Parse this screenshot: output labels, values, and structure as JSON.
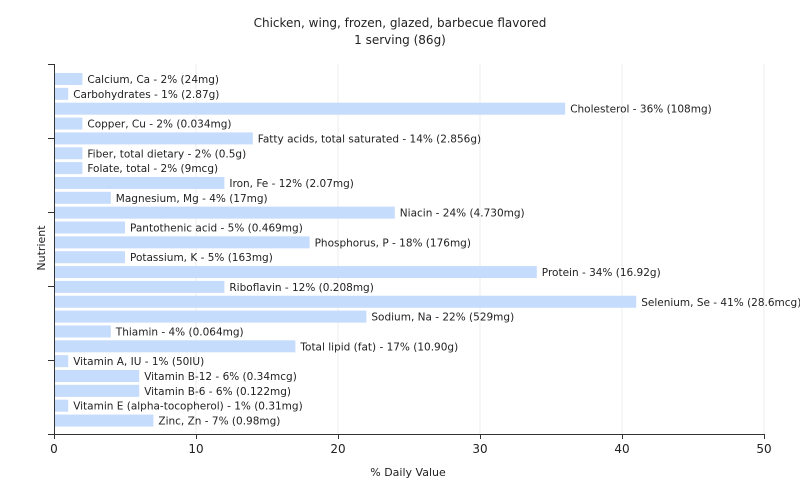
{
  "chart_data": {
    "type": "bar",
    "orientation": "horizontal",
    "title": "Chicken, wing, frozen, glazed, barbecue flavored",
    "subtitle": "1 serving (86g)",
    "xlabel": "% Daily Value",
    "ylabel": "Nutrient",
    "xlim": [
      0,
      50
    ],
    "xticks": [
      0,
      10,
      20,
      30,
      40,
      50
    ],
    "grid": true,
    "bar_color": "#c6dcfc",
    "categories": [
      "Calcium, Ca - 2% (24mg)",
      "Carbohydrates - 1% (2.87g)",
      "Cholesterol - 36% (108mg)",
      "Copper, Cu - 2% (0.034mg)",
      "Fatty acids, total saturated - 14% (2.856g)",
      "Fiber, total dietary - 2% (0.5g)",
      "Folate, total - 2% (9mcg)",
      "Iron, Fe - 12% (2.07mg)",
      "Magnesium, Mg - 4% (17mg)",
      "Niacin - 24% (4.730mg)",
      "Pantothenic acid - 5% (0.469mg)",
      "Phosphorus, P - 18% (176mg)",
      "Potassium, K - 5% (163mg)",
      "Protein - 34% (16.92g)",
      "Riboflavin - 12% (0.208mg)",
      "Selenium, Se - 41% (28.6mcg)",
      "Sodium, Na - 22% (529mg)",
      "Thiamin - 4% (0.064mg)",
      "Total lipid (fat) - 17% (10.90g)",
      "Vitamin A, IU - 1% (50IU)",
      "Vitamin B-12 - 6% (0.34mcg)",
      "Vitamin B-6 - 6% (0.122mg)",
      "Vitamin E (alpha-tocopherol) - 1% (0.31mg)",
      "Zinc, Zn - 7% (0.98mg)"
    ],
    "values": [
      2,
      1,
      36,
      2,
      14,
      2,
      2,
      12,
      4,
      24,
      5,
      18,
      5,
      34,
      12,
      41,
      22,
      4,
      17,
      1,
      6,
      6,
      1,
      7
    ]
  }
}
